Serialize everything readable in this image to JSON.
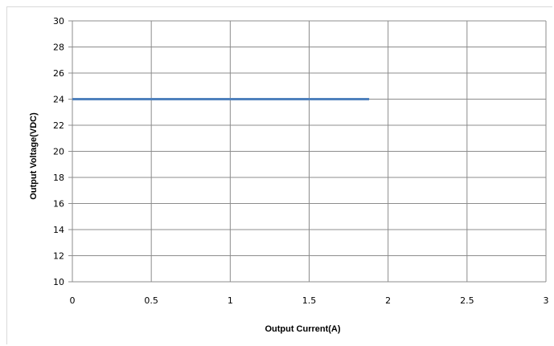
{
  "chart_data": {
    "type": "line",
    "title": "",
    "xlabel": "Output Current(A)",
    "ylabel": "Output Voltage(VDC)",
    "xlim": [
      0,
      3
    ],
    "ylim": [
      10,
      30
    ],
    "x_ticks": [
      "0",
      "0.5",
      "1",
      "1.5",
      "2",
      "2.5",
      "3"
    ],
    "y_ticks": [
      "10",
      "12",
      "14",
      "16",
      "18",
      "20",
      "22",
      "24",
      "26",
      "28",
      "30"
    ],
    "grid": true,
    "legend": "none",
    "series": [
      {
        "color": "#4f81bd",
        "x": [
          0,
          1.88
        ],
        "y": [
          24,
          24
        ]
      }
    ]
  }
}
